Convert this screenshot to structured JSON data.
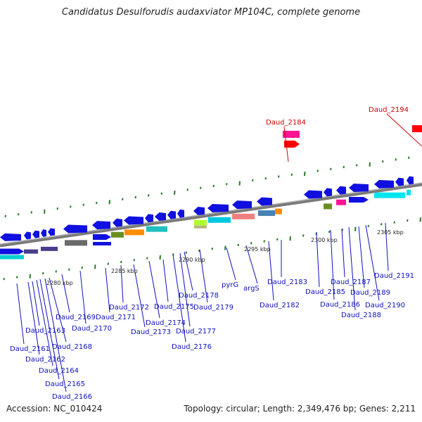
{
  "title": "Candidatus Desulforudis audaxviator MP104C, complete genome",
  "accession_text": "Accession: NC_010424",
  "summary_text": "Topology: circular; Length: 2,349,476 bp; Genes: 2,211",
  "colors": {
    "backbone": "#8a8a8a",
    "gene_forward": "#1010e0",
    "label": "#1010c0",
    "highlight": "#d00000",
    "tick": "#2a7a2a"
  },
  "scale_labels": [
    "2280 kbp",
    "2285 kbp",
    "2290 kbp",
    "2295 kbp",
    "2300 kbp",
    "2305 kbp"
  ],
  "gene_labels": [
    "Daud_2161",
    "Daud_2162",
    "Daud_2163",
    "Daud_2164",
    "Daud_2165",
    "Daud_2166",
    "Daud_2168",
    "Daud_2169",
    "Daud_2170",
    "Daud_2171",
    "Daud_2172",
    "Daud_2173",
    "Daud_2174",
    "Daud_2175",
    "Daud_2176",
    "Daud_2177",
    "Daud_2178",
    "Daud_2179",
    "pyrG",
    "argS",
    "Daud_2182",
    "Daud_2183",
    "Daud_2185",
    "Daud_2186",
    "Daud_2187",
    "Daud_2188",
    "Daud_2189",
    "Daud_2190",
    "Daud_2191"
  ],
  "highlight_labels": [
    "Daud_2184",
    "Daud_2194"
  ]
}
